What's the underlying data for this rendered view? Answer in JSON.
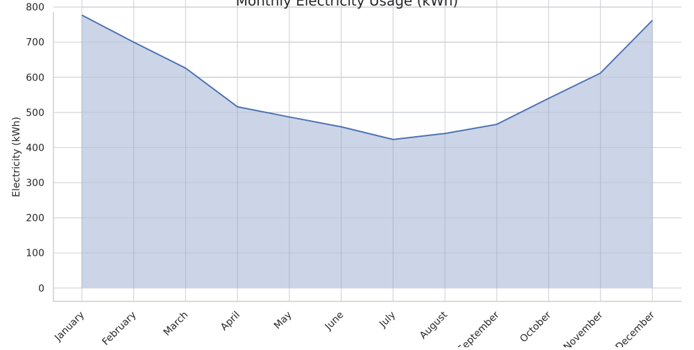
{
  "chart_data": {
    "type": "area",
    "title": "Monthly Electricity Usage (kWh)",
    "xlabel": "",
    "ylabel": "Electricity (kWh)",
    "categories": [
      "January",
      "February",
      "March",
      "April",
      "May",
      "June",
      "July",
      "August",
      "September",
      "October",
      "November",
      "December"
    ],
    "series": [
      {
        "values": [
          777,
          700,
          626,
          516,
          487,
          459,
          423,
          440,
          466,
          540,
          612,
          762
        ]
      }
    ],
    "ylim": [
      -38,
      820
    ],
    "yticks": [
      0,
      100,
      200,
      300,
      400,
      500,
      600,
      700,
      800
    ],
    "grid": true,
    "colors": {
      "line": "#4c72b0",
      "fill": "#c9d3e6",
      "grid": "#d5d5d8",
      "axis": "#cfcfcf",
      "text": "#262626"
    }
  }
}
